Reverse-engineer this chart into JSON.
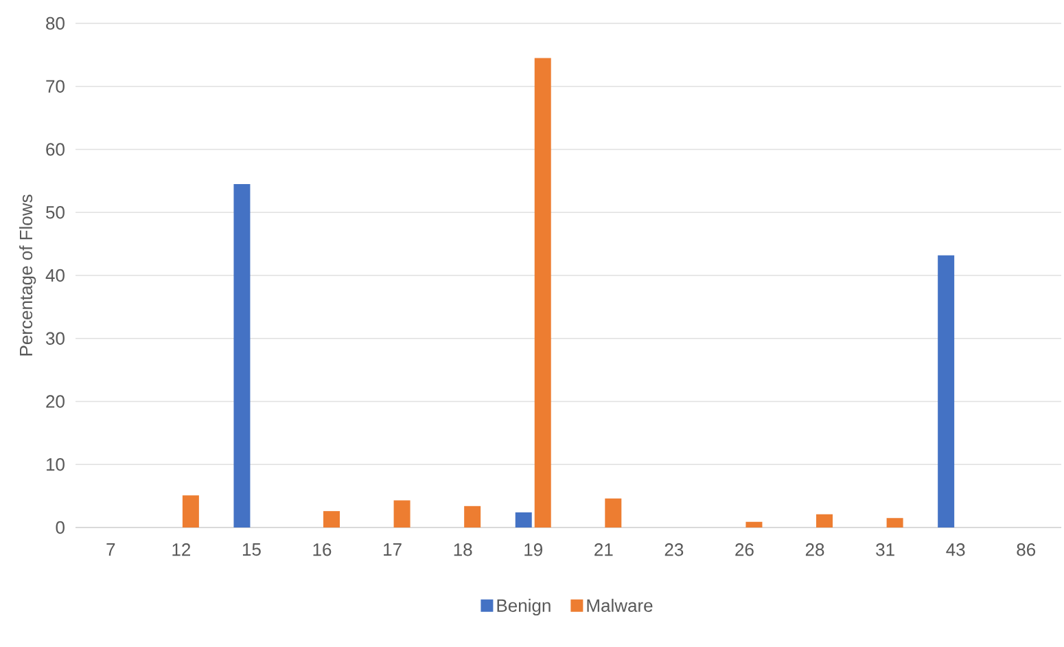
{
  "chart_data": {
    "type": "bar",
    "ylabel": "Percentage of Flows",
    "categories": [
      "7",
      "12",
      "15",
      "16",
      "17",
      "18",
      "19",
      "21",
      "23",
      "26",
      "28",
      "31",
      "43",
      "86"
    ],
    "series": [
      {
        "name": "Benign",
        "color": "#4472c4",
        "values": [
          0,
          0,
          54.5,
          0,
          0,
          0,
          2.4,
          0,
          0,
          0,
          0,
          0,
          43.2,
          0
        ]
      },
      {
        "name": "Malware",
        "color": "#ed7d31",
        "values": [
          0,
          5.1,
          0,
          2.6,
          4.3,
          3.4,
          74.5,
          4.6,
          0,
          0.9,
          2.1,
          1.5,
          0,
          0
        ]
      }
    ],
    "ylim": [
      0,
      80
    ],
    "yticks": [
      0,
      10,
      20,
      30,
      40,
      50,
      60,
      70,
      80
    ],
    "grid": "y",
    "legend": "bottom"
  }
}
